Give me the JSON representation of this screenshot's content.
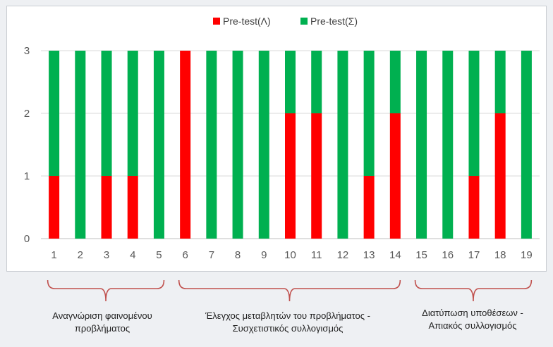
{
  "chart_data": {
    "type": "bar",
    "stacked": true,
    "categories": [
      "1",
      "2",
      "3",
      "4",
      "5",
      "6",
      "7",
      "8",
      "9",
      "10",
      "11",
      "12",
      "13",
      "14",
      "15",
      "16",
      "17",
      "18",
      "19"
    ],
    "series": [
      {
        "name": "Pre-test(Λ)",
        "color": "#ff0000",
        "values": [
          1,
          0,
          1,
          1,
          0,
          3,
          0,
          0,
          0,
          2,
          2,
          0,
          1,
          2,
          0,
          0,
          1,
          2,
          0
        ]
      },
      {
        "name": "Pre-test(Σ)",
        "color": "#00b050",
        "values": [
          2,
          3,
          2,
          2,
          3,
          0,
          3,
          3,
          3,
          1,
          1,
          3,
          2,
          1,
          3,
          3,
          2,
          1,
          3
        ]
      }
    ],
    "ylim": [
      0,
      3
    ],
    "yticks": [
      "0",
      "1",
      "2",
      "3"
    ],
    "grid": true,
    "legend": "top-center",
    "title": "",
    "xlabel": "",
    "ylabel": ""
  },
  "groups": [
    {
      "label": "Αναγνώριση φαινομένου προβλήματος",
      "line1": "Αναγνώριση φαινομένου",
      "line2": "προβλήματος",
      "from": 1,
      "to": 5
    },
    {
      "label": "Έλεγχος μεταβλητών του προβλήματος - Συσχετιστικός συλλογισμός",
      "line1": "Έλεγχος μεταβλητών του προβλήματος -",
      "line2": "Συσχετιστικός συλλογισμός",
      "from": 6,
      "to": 14
    },
    {
      "label": "Διατύπωση υποθέσεων - Απιακός συλλογισμός",
      "line1": "Διατύπωση υποθέσεων -",
      "line2": "Απιακός συλλογισμός",
      "from": 15,
      "to": 19
    }
  ],
  "colors": {
    "bracket": "#c0504d",
    "gridline": "#d9d9d9",
    "axis": "#bfbfbf"
  }
}
